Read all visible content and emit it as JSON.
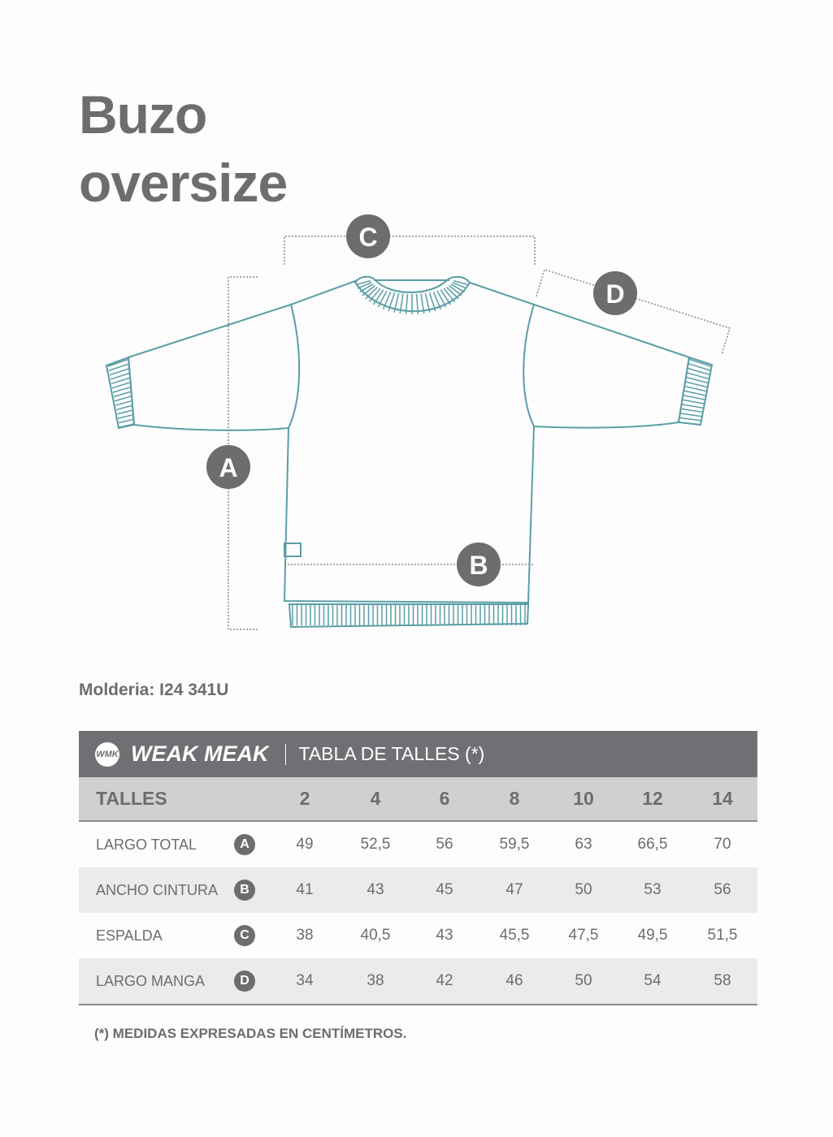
{
  "title_line1": "Buzo",
  "title_line2": "oversize",
  "diagram": {
    "markers": [
      "A",
      "B",
      "C",
      "D"
    ],
    "line_color": "#5a9ea6",
    "marker_color": "#6d6d70"
  },
  "molderia": "Molderia: I24 341U",
  "table": {
    "brand": "WEAK MEAK",
    "brand_mark": "WMK",
    "title": "TABLA DE TALLES (*)",
    "header_label": "TALLES",
    "sizes": [
      "2",
      "4",
      "6",
      "8",
      "10",
      "12",
      "14"
    ],
    "rows": [
      {
        "label": "LARGO TOTAL",
        "marker": "A",
        "values": [
          "49",
          "52,5",
          "56",
          "59,5",
          "63",
          "66,5",
          "70"
        ]
      },
      {
        "label": "ANCHO CINTURA",
        "marker": "B",
        "values": [
          "41",
          "43",
          "45",
          "47",
          "50",
          "53",
          "56"
        ]
      },
      {
        "label": "ESPALDA",
        "marker": "C",
        "values": [
          "38",
          "40,5",
          "43",
          "45,5",
          "47,5",
          "49,5",
          "51,5"
        ]
      },
      {
        "label": "LARGO MANGA",
        "marker": "D",
        "values": [
          "34",
          "38",
          "42",
          "46",
          "50",
          "54",
          "58"
        ]
      }
    ]
  },
  "note": "(*) MEDIDAS EXPRESADAS EN CENTÍMETROS."
}
